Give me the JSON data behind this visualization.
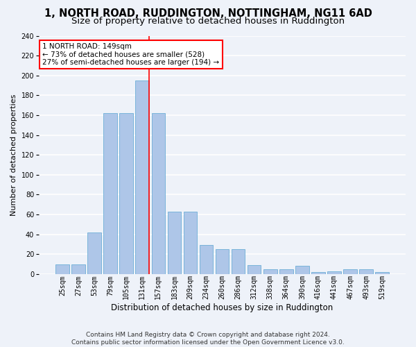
{
  "title": "1, NORTH ROAD, RUDDINGTON, NOTTINGHAM, NG11 6AD",
  "subtitle": "Size of property relative to detached houses in Ruddington",
  "xlabel": "Distribution of detached houses by size in Ruddington",
  "ylabel": "Number of detached properties",
  "bin_labels": [
    "25sqm",
    "27sqm",
    "53sqm",
    "79sqm",
    "105sqm",
    "131sqm",
    "157sqm",
    "183sqm",
    "209sqm",
    "234sqm",
    "260sqm",
    "286sqm",
    "312sqm",
    "338sqm",
    "364sqm",
    "390sqm",
    "416sqm",
    "441sqm",
    "467sqm",
    "493sqm",
    "519sqm"
  ],
  "bar_heights": [
    10,
    10,
    42,
    162,
    162,
    195,
    162,
    63,
    63,
    29,
    25,
    25,
    9,
    5,
    5,
    8,
    2,
    3,
    5,
    5,
    2
  ],
  "bar_color": "#aec6e8",
  "bar_edge_color": "#6baed6",
  "vline_color": "red",
  "vline_bin_index": 5,
  "annotation_text": "1 NORTH ROAD: 149sqm\n← 73% of detached houses are smaller (528)\n27% of semi-detached houses are larger (194) →",
  "annotation_box_color": "white",
  "annotation_box_edge_color": "red",
  "footer": "Contains HM Land Registry data © Crown copyright and database right 2024.\nContains public sector information licensed under the Open Government Licence v3.0.",
  "ylim": [
    0,
    240
  ],
  "yticks": [
    0,
    20,
    40,
    60,
    80,
    100,
    120,
    140,
    160,
    180,
    200,
    220,
    240
  ],
  "background_color": "#eef2f9",
  "grid_color": "white",
  "title_fontsize": 10.5,
  "subtitle_fontsize": 9.5,
  "xlabel_fontsize": 8.5,
  "ylabel_fontsize": 8,
  "tick_fontsize": 7,
  "footer_fontsize": 6.5,
  "annotation_fontsize": 7.5,
  "bar_width": 0.85
}
